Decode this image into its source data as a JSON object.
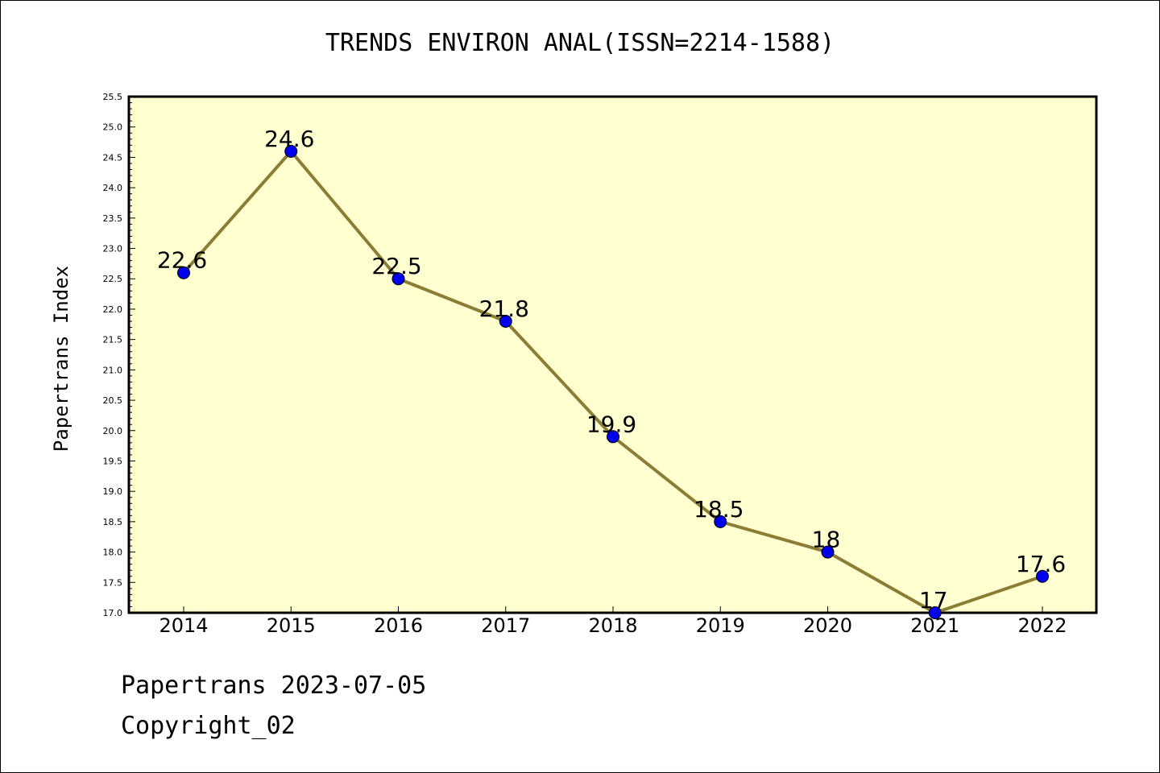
{
  "chart_data": {
    "type": "line",
    "title": "TRENDS ENVIRON ANAL(ISSN=2214-1588)",
    "ylabel": "Papertrans Index",
    "xlabel": "",
    "categories": [
      "2014",
      "2015",
      "2016",
      "2017",
      "2018",
      "2019",
      "2020",
      "2021",
      "2022"
    ],
    "values": [
      22.6,
      24.6,
      22.5,
      21.8,
      19.9,
      18.5,
      18.0,
      17.0,
      17.6
    ],
    "value_labels": [
      "22.6",
      "24.6",
      "22.5",
      "21.8",
      "19.9",
      "18.5",
      "18",
      "17",
      "17.6"
    ],
    "ylim": [
      17.0,
      25.5
    ],
    "yticks": [
      "17.0",
      "17.5",
      "18.0",
      "18.5",
      "19.0",
      "19.5",
      "20.0",
      "20.5",
      "21.0",
      "21.5",
      "22.0",
      "22.5",
      "23.0",
      "23.5",
      "24.0",
      "24.5",
      "25.0",
      "25.5"
    ],
    "grid": false,
    "colors": {
      "plot_background": "#ffffd0",
      "line": "#8b7d35",
      "marker": "#0000ee"
    }
  },
  "footer": {
    "line1": "Papertrans 2023-07-05",
    "line2": "Copyright_02"
  }
}
